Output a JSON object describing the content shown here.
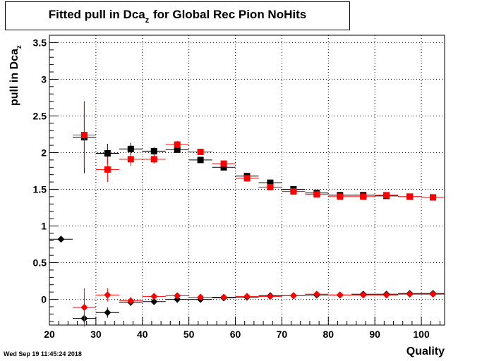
{
  "title": {
    "main": "Fitted pull in Dca",
    "sub": "z",
    "rest": " for Global Rec Pion NoHits"
  },
  "timestamp": "Wed Sep 19 11:45:24 2018",
  "colors": {
    "series_black": "#000000",
    "series_red": "#ff0000",
    "grid": "#000000"
  },
  "chart_data": {
    "type": "scatter",
    "title": "Fitted pull in Dca_z for Global Rec Pion NoHits",
    "xlabel": "Quality",
    "ylabel": "pull in Dca_z",
    "ylabel_main": "pull in Dca",
    "ylabel_sub": "z",
    "xlim": [
      20,
      105
    ],
    "ylim": [
      -0.35,
      3.6
    ],
    "xticks": [
      20,
      30,
      40,
      50,
      60,
      70,
      80,
      90,
      100
    ],
    "yticks": [
      0,
      0.5,
      1,
      1.5,
      2,
      2.5,
      3,
      3.5
    ],
    "xtick_labels": [
      "20",
      "30",
      "40",
      "50",
      "60",
      "70",
      "80",
      "90",
      "100"
    ],
    "ytick_labels": [
      "0",
      "0.5",
      "1",
      "1.5",
      "2",
      "2.5",
      "3",
      "3.5"
    ],
    "grid": true,
    "x_halfwidth": 2.5,
    "series": [
      {
        "marker": "square",
        "color": "#000000",
        "points": [
          {
            "x": 27.5,
            "y": 2.21,
            "err": 0.49
          },
          {
            "x": 32.5,
            "y": 1.99,
            "err": 0.13
          },
          {
            "x": 37.5,
            "y": 2.05,
            "err": 0.08
          },
          {
            "x": 42.5,
            "y": 2.02,
            "err": 0.05
          },
          {
            "x": 47.5,
            "y": 2.04,
            "err": 0.04
          },
          {
            "x": 52.5,
            "y": 1.9,
            "err": 0.03
          },
          {
            "x": 57.5,
            "y": 1.8,
            "err": 0.03
          },
          {
            "x": 62.5,
            "y": 1.68,
            "err": 0.02
          },
          {
            "x": 67.5,
            "y": 1.59,
            "err": 0.02
          },
          {
            "x": 72.5,
            "y": 1.5,
            "err": 0.02
          },
          {
            "x": 77.5,
            "y": 1.45,
            "err": 0.02
          },
          {
            "x": 82.5,
            "y": 1.42,
            "err": 0.02
          },
          {
            "x": 87.5,
            "y": 1.42,
            "err": 0.02
          },
          {
            "x": 92.5,
            "y": 1.41,
            "err": 0.02
          },
          {
            "x": 97.5,
            "y": 1.4,
            "err": 0.02
          },
          {
            "x": 102.5,
            "y": 1.39,
            "err": 0.02
          }
        ]
      },
      {
        "marker": "square",
        "color": "#ff0000",
        "points": [
          {
            "x": 27.5,
            "y": 2.24,
            "err": 0.45
          },
          {
            "x": 32.5,
            "y": 1.77,
            "err": 0.17
          },
          {
            "x": 37.5,
            "y": 1.91,
            "err": 0.09
          },
          {
            "x": 42.5,
            "y": 1.91,
            "err": 0.06
          },
          {
            "x": 47.5,
            "y": 2.11,
            "err": 0.05
          },
          {
            "x": 52.5,
            "y": 2.01,
            "err": 0.03
          },
          {
            "x": 57.5,
            "y": 1.85,
            "err": 0.03
          },
          {
            "x": 62.5,
            "y": 1.65,
            "err": 0.02
          },
          {
            "x": 67.5,
            "y": 1.53,
            "err": 0.02
          },
          {
            "x": 72.5,
            "y": 1.47,
            "err": 0.02
          },
          {
            "x": 77.5,
            "y": 1.43,
            "err": 0.02
          },
          {
            "x": 82.5,
            "y": 1.4,
            "err": 0.02
          },
          {
            "x": 87.5,
            "y": 1.4,
            "err": 0.02
          },
          {
            "x": 92.5,
            "y": 1.42,
            "err": 0.02
          },
          {
            "x": 97.5,
            "y": 1.4,
            "err": 0.02
          },
          {
            "x": 102.5,
            "y": 1.39,
            "err": 0.02
          }
        ]
      },
      {
        "marker": "diamond",
        "color": "#000000",
        "points": [
          {
            "x": 22.5,
            "y": 0.82,
            "err": 0.0
          },
          {
            "x": 27.5,
            "y": -0.26,
            "err": 0.06
          },
          {
            "x": 32.5,
            "y": -0.18,
            "err": 0.07
          },
          {
            "x": 37.5,
            "y": -0.04,
            "err": 0.05
          },
          {
            "x": 42.5,
            "y": -0.03,
            "err": 0.02
          },
          {
            "x": 47.5,
            "y": 0.0,
            "err": 0.02
          },
          {
            "x": 52.5,
            "y": 0.0,
            "err": 0.02
          },
          {
            "x": 57.5,
            "y": 0.02,
            "err": 0.01
          },
          {
            "x": 62.5,
            "y": 0.03,
            "err": 0.01
          },
          {
            "x": 67.5,
            "y": 0.05,
            "err": 0.01
          },
          {
            "x": 72.5,
            "y": 0.05,
            "err": 0.01
          },
          {
            "x": 77.5,
            "y": 0.06,
            "err": 0.01
          },
          {
            "x": 82.5,
            "y": 0.06,
            "err": 0.01
          },
          {
            "x": 87.5,
            "y": 0.07,
            "err": 0.01
          },
          {
            "x": 92.5,
            "y": 0.07,
            "err": 0.01
          },
          {
            "x": 97.5,
            "y": 0.08,
            "err": 0.01
          },
          {
            "x": 102.5,
            "y": 0.08,
            "err": 0.01
          }
        ]
      },
      {
        "marker": "diamond",
        "color": "#ff0000",
        "points": [
          {
            "x": 27.5,
            "y": -0.11,
            "err": 0.26
          },
          {
            "x": 32.5,
            "y": 0.06,
            "err": 0.09
          },
          {
            "x": 37.5,
            "y": -0.02,
            "err": 0.05
          },
          {
            "x": 42.5,
            "y": 0.04,
            "err": 0.03
          },
          {
            "x": 47.5,
            "y": 0.05,
            "err": 0.02
          },
          {
            "x": 52.5,
            "y": 0.03,
            "err": 0.02
          },
          {
            "x": 57.5,
            "y": 0.03,
            "err": 0.01
          },
          {
            "x": 62.5,
            "y": 0.04,
            "err": 0.01
          },
          {
            "x": 67.5,
            "y": 0.04,
            "err": 0.01
          },
          {
            "x": 72.5,
            "y": 0.05,
            "err": 0.01
          },
          {
            "x": 77.5,
            "y": 0.07,
            "err": 0.01
          },
          {
            "x": 82.5,
            "y": 0.06,
            "err": 0.01
          },
          {
            "x": 87.5,
            "y": 0.06,
            "err": 0.01
          },
          {
            "x": 92.5,
            "y": 0.06,
            "err": 0.01
          },
          {
            "x": 97.5,
            "y": 0.07,
            "err": 0.01
          },
          {
            "x": 102.5,
            "y": 0.07,
            "err": 0.01
          }
        ]
      }
    ]
  }
}
